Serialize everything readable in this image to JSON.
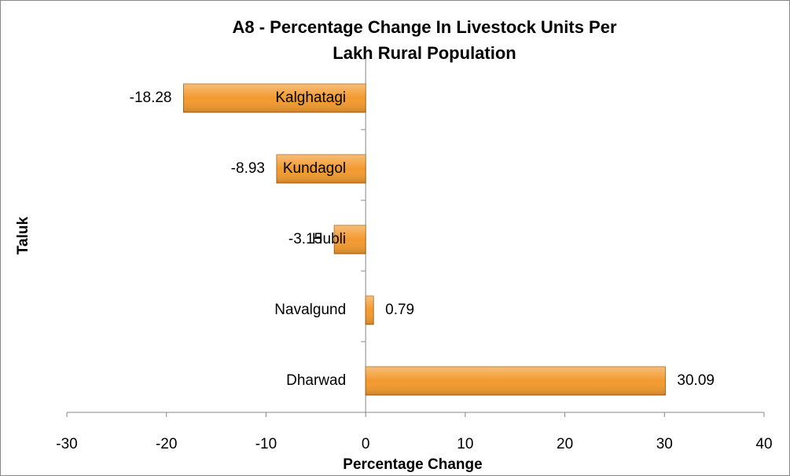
{
  "chart_data": {
    "type": "bar",
    "orientation": "horizontal",
    "title": "A8 - Percentage Change In Livestock Units Per Lakh Rural Population",
    "x_label": "Percentage Change",
    "y_label": "Taluk",
    "categories": [
      "Kalghatagi",
      "Kundagol",
      "Hubli",
      "Navalgund",
      "Dharwad"
    ],
    "values": [
      -18.28,
      -8.93,
      -3.15,
      0.79,
      30.09
    ],
    "color": "#f39a2e",
    "xlim": [
      -30,
      40
    ],
    "xticks": [
      -30,
      -20,
      -10,
      0,
      10,
      20,
      30,
      40
    ]
  }
}
